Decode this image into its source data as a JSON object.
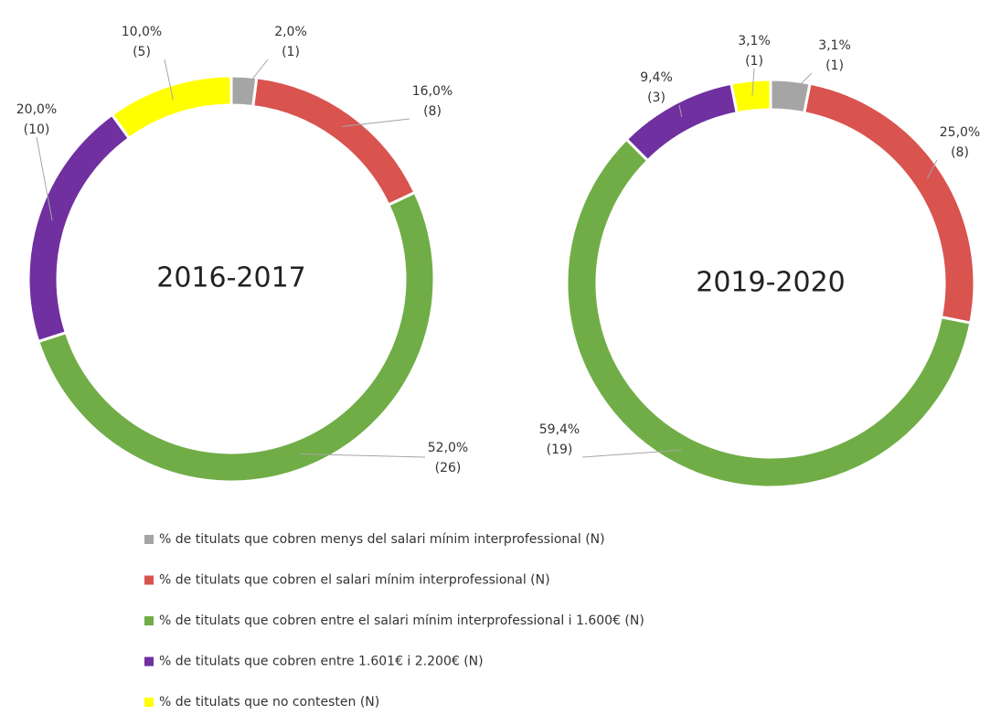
{
  "chart_data": [
    {
      "type": "donut",
      "title": "2016-2017",
      "values": [
        2,
        16,
        52,
        20,
        10
      ],
      "value_labels": [
        "2,0%",
        "16,0%",
        "52,0%",
        "20,0%",
        "10,0%"
      ],
      "count_labels": [
        "(1)",
        "(8)",
        "(26)",
        "(10)",
        "(5)"
      ]
    },
    {
      "type": "donut",
      "title": "2019-2020",
      "values": [
        3.1,
        25,
        59.4,
        9.4,
        3.1
      ],
      "value_labels": [
        "3,1%",
        "25,0%",
        "59,4%",
        "9,4%",
        "3,1%"
      ],
      "count_labels": [
        "(1)",
        "(8)",
        "(19)",
        "(3)",
        "(1)"
      ]
    }
  ],
  "legend": {
    "labels": [
      "% de titulats que cobren menys del salari mínim interprofessional (N)",
      "% de titulats que cobren el salari mínim interprofessional (N)",
      "% de titulats que cobren entre el salari mínim interprofessional i 1.600€ (N)",
      "% de titulats que cobren entre 1.601€ i 2.200€ (N)",
      "% de titulats que no contesten (N)"
    ],
    "colors": [
      "#a5a5a5",
      "#d9534f",
      "#70ad47",
      "#7030a0",
      "#ffff00"
    ]
  }
}
